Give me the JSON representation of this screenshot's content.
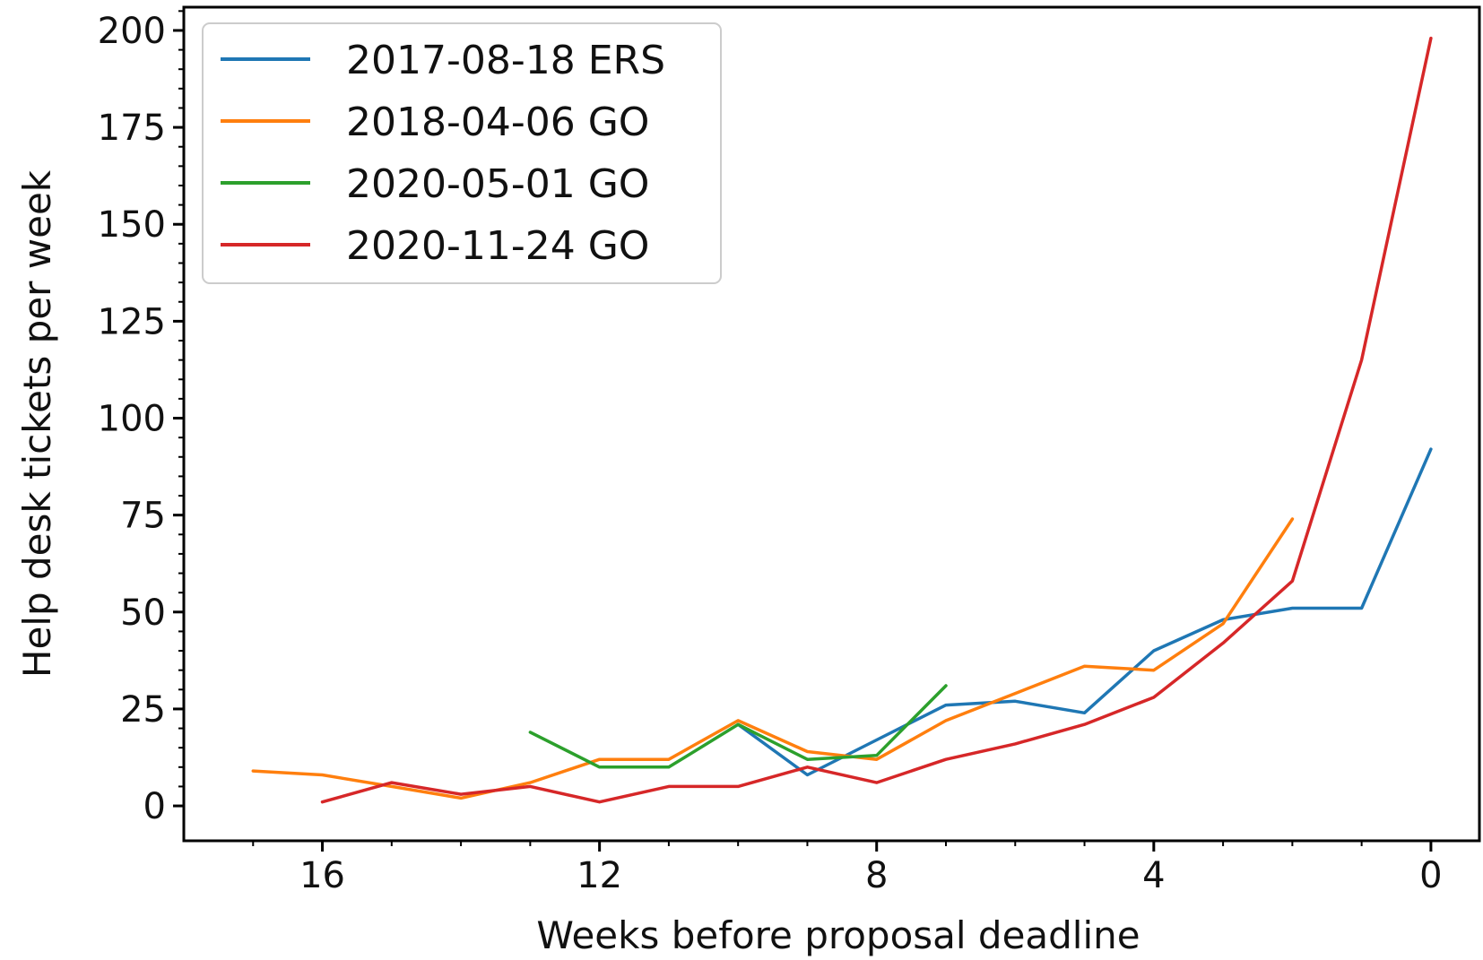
{
  "chart_data": {
    "type": "line",
    "title": "",
    "xlabel": "Weeks before proposal deadline",
    "ylabel": "Help desk tickets per week",
    "xlim": [
      18.0,
      -0.7
    ],
    "ylim": [
      -9,
      206
    ],
    "x_inverted": true,
    "grid": false,
    "legend_position": "top-left",
    "x_ticks": [
      16,
      12,
      8,
      4,
      0
    ],
    "x_tick_labels": [
      "16",
      "12",
      "8",
      "4",
      "0"
    ],
    "y_ticks": [
      0,
      25,
      50,
      75,
      100,
      125,
      150,
      175,
      200
    ],
    "y_tick_labels": [
      "0",
      "25",
      "50",
      "75",
      "100",
      "125",
      "150",
      "175",
      "200"
    ],
    "series": [
      {
        "name": "2017-08-18 ERS",
        "color": "#1f77b4",
        "x": [
          10,
          9,
          8,
          7,
          6,
          5,
          4,
          3,
          2,
          1,
          0
        ],
        "y": [
          21,
          8,
          17,
          26,
          27,
          24,
          40,
          48,
          51,
          51,
          92
        ]
      },
      {
        "name": "2018-04-06 GO",
        "color": "#ff7f0e",
        "x": [
          17,
          16,
          15,
          14,
          13,
          12,
          11,
          10,
          9,
          8,
          7,
          6,
          5,
          4,
          3,
          2
        ],
        "y": [
          9,
          8,
          5,
          2,
          6,
          12,
          12,
          22,
          14,
          12,
          22,
          29,
          36,
          35,
          47,
          74
        ]
      },
      {
        "name": "2020-05-01 GO",
        "color": "#2ca02c",
        "x": [
          13,
          12,
          11,
          10,
          9,
          8,
          7
        ],
        "y": [
          19,
          10,
          10,
          21,
          12,
          13,
          31
        ]
      },
      {
        "name": "2020-11-24 GO",
        "color": "#d62728",
        "x": [
          16,
          15,
          14,
          13,
          12,
          11,
          10,
          9,
          8,
          7,
          6,
          5,
          4,
          3,
          2,
          1,
          0
        ],
        "y": [
          1,
          6,
          3,
          5,
          1,
          5,
          5,
          10,
          6,
          12,
          16,
          21,
          28,
          42,
          58,
          115,
          198
        ]
      }
    ]
  }
}
